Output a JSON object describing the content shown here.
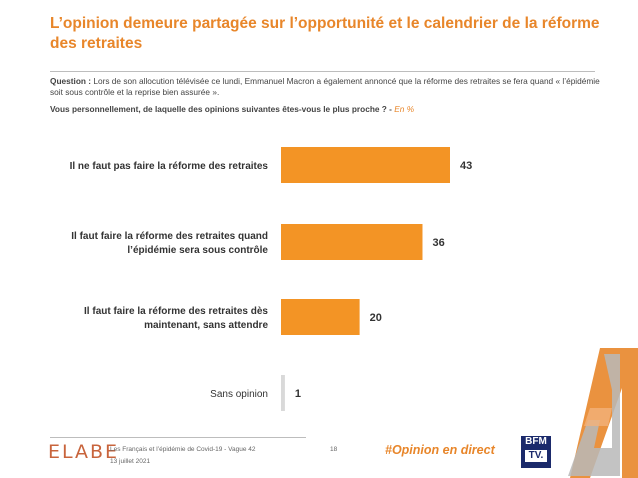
{
  "header": {
    "title": "L’opinion demeure partagée sur l’opportunité et le calendrier de la réforme des retraites"
  },
  "question": {
    "label": "Question :",
    "text": "Lors de son allocution télévisée ce lundi, Emmanuel Macron a également annoncé que la réforme des retraites se fera quand « l’épidémie soit sous contrôle et la reprise bien assurée ».",
    "subquestion": "Vous personnellement, de laquelle des opinions suivantes êtes-vous le plus proche ? -",
    "unit": "En %"
  },
  "chart_data": {
    "type": "bar",
    "orientation": "horizontal",
    "categories": [
      [
        "Il ne faut pas faire la réforme des retraites"
      ],
      [
        "Il faut faire la réforme des retraites quand",
        "l’épidémie sera sous contrôle"
      ],
      [
        "Il faut faire la réforme des retraites dès",
        "maintenant, sans attendre"
      ],
      [
        "Sans opinion"
      ]
    ],
    "values": [
      43,
      36,
      20,
      1
    ],
    "value_labels": [
      "43",
      "36",
      "20",
      "1"
    ],
    "bar_colors": [
      "#f39425",
      "#f39425",
      "#f39425",
      "#d9d9d9"
    ],
    "xlim": [
      0,
      50
    ],
    "grid": false,
    "legend": "none"
  },
  "footer": {
    "brand": "ELABE",
    "study": "Les Français et l’épidémie de Covid-19 - Vague 42",
    "date": "13 juillet 2021",
    "page": "18",
    "hashtag": "#Opinion en direct",
    "partner_top": "BFM",
    "partner_bottom": "TV."
  },
  "colors": {
    "accent": "#e8862a",
    "bar": "#f39425",
    "muted_bar": "#d9d9d9",
    "partner": "#1b2a6b"
  }
}
